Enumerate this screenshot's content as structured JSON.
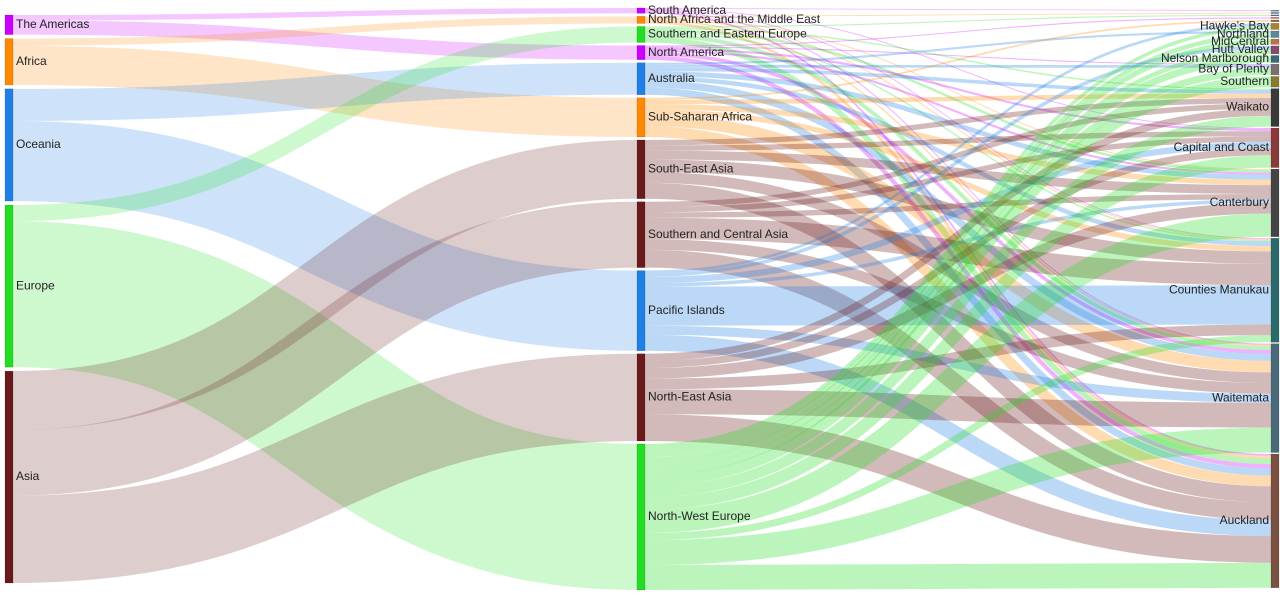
{
  "chart_data": {
    "type": "sankey",
    "columns": [
      {
        "nodes": [
          {
            "id": "americas",
            "label": "The Americas",
            "color": "#cc00ff"
          },
          {
            "id": "africa",
            "label": "Africa",
            "color": "#ff8800"
          },
          {
            "id": "oceania",
            "label": "Oceania",
            "color": "#1e7fe6"
          },
          {
            "id": "europe",
            "label": "Europe",
            "color": "#22dd22"
          },
          {
            "id": "asia",
            "label": "Asia",
            "color": "#6a1a1a"
          }
        ]
      },
      {
        "nodes": [
          {
            "id": "south_america",
            "label": "South America",
            "color": "#cc00ff"
          },
          {
            "id": "nafme",
            "label": "North Africa and the Middle East",
            "color": "#ff8800"
          },
          {
            "id": "se_europe",
            "label": "Southern and Eastern Europe",
            "color": "#22dd22"
          },
          {
            "id": "north_america",
            "label": "North America",
            "color": "#cc00ff"
          },
          {
            "id": "australia",
            "label": "Australia",
            "color": "#1e7fe6"
          },
          {
            "id": "ssa",
            "label": "Sub-Saharan Africa",
            "color": "#ff8800"
          },
          {
            "id": "sea",
            "label": "South-East Asia",
            "color": "#6a1a1a"
          },
          {
            "id": "sca",
            "label": "Southern and Central Asia",
            "color": "#6a1a1a"
          },
          {
            "id": "pacific",
            "label": "Pacific Islands",
            "color": "#1e7fe6"
          },
          {
            "id": "nea",
            "label": "North-East Asia",
            "color": "#6a1a1a"
          },
          {
            "id": "nwe",
            "label": "North-West Europe",
            "color": "#22dd22"
          }
        ]
      },
      {
        "nodes": [
          {
            "id": "r1",
            "label": "",
            "color": "#3d8f8f"
          },
          {
            "id": "r2",
            "label": "",
            "color": "#7a4a7a"
          },
          {
            "id": "r3",
            "label": "",
            "color": "#4a6f9a"
          },
          {
            "id": "r4",
            "label": "",
            "color": "#b05050"
          },
          {
            "id": "r5",
            "label": "",
            "color": "#8a6a3a"
          },
          {
            "id": "hawkes",
            "label": "Hawke's Bay",
            "color": "#b08030"
          },
          {
            "id": "northland",
            "label": "Northland",
            "color": "#5a8aa0"
          },
          {
            "id": "midcentral",
            "label": "MidCentral",
            "color": "#c0704a"
          },
          {
            "id": "hutt",
            "label": "Hutt Valley",
            "color": "#8a4a6a"
          },
          {
            "id": "nelson",
            "label": "Nelson Marlborough",
            "color": "#3a6a7a"
          },
          {
            "id": "bop",
            "label": "Bay of Plenty",
            "color": "#7a7070"
          },
          {
            "id": "southern",
            "label": "Southern",
            "color": "#8a7a30"
          },
          {
            "id": "waikato",
            "label": "Waikato",
            "color": "#3a3a3a"
          },
          {
            "id": "capital",
            "label": "Capital and Coast",
            "color": "#8a3a3a"
          },
          {
            "id": "canterbury",
            "label": "Canterbury",
            "color": "#444444"
          },
          {
            "id": "counties",
            "label": "Counties Manukau",
            "color": "#2a6a6a"
          },
          {
            "id": "waitemata",
            "label": "Waitemata",
            "color": "#4a6a7a"
          },
          {
            "id": "auckland",
            "label": "Auckland",
            "color": "#7a5040"
          }
        ]
      }
    ],
    "links": [
      {
        "source": "americas",
        "target": "south_america",
        "value": 3
      },
      {
        "source": "americas",
        "target": "north_america",
        "value": 8
      },
      {
        "source": "africa",
        "target": "nafme",
        "value": 4
      },
      {
        "source": "africa",
        "target": "ssa",
        "value": 22
      },
      {
        "source": "oceania",
        "target": "australia",
        "value": 18
      },
      {
        "source": "oceania",
        "target": "pacific",
        "value": 45
      },
      {
        "source": "europe",
        "target": "se_europe",
        "value": 9
      },
      {
        "source": "europe",
        "target": "nwe",
        "value": 82
      },
      {
        "source": "asia",
        "target": "sea",
        "value": 33
      },
      {
        "source": "asia",
        "target": "sca",
        "value": 37
      },
      {
        "source": "asia",
        "target": "nea",
        "value": 49
      },
      {
        "source": "south_america",
        "target": "r1",
        "value": 0.4
      },
      {
        "source": "south_america",
        "target": "capital",
        "value": 0.5
      },
      {
        "source": "south_america",
        "target": "counties",
        "value": 0.5
      },
      {
        "source": "south_america",
        "target": "waitemata",
        "value": 0.6
      },
      {
        "source": "south_america",
        "target": "auckland",
        "value": 1.0
      },
      {
        "source": "nafme",
        "target": "r2",
        "value": 0.5
      },
      {
        "source": "nafme",
        "target": "canterbury",
        "value": 0.6
      },
      {
        "source": "nafme",
        "target": "counties",
        "value": 0.6
      },
      {
        "source": "nafme",
        "target": "waitemata",
        "value": 0.8
      },
      {
        "source": "nafme",
        "target": "auckland",
        "value": 1.5
      },
      {
        "source": "se_europe",
        "target": "r3",
        "value": 0.6
      },
      {
        "source": "se_europe",
        "target": "waikato",
        "value": 0.8
      },
      {
        "source": "se_europe",
        "target": "canterbury",
        "value": 1.4
      },
      {
        "source": "se_europe",
        "target": "counties",
        "value": 0.8
      },
      {
        "source": "se_europe",
        "target": "waitemata",
        "value": 2.2
      },
      {
        "source": "se_europe",
        "target": "auckland",
        "value": 3.2
      },
      {
        "source": "north_america",
        "target": "r4",
        "value": 0.6
      },
      {
        "source": "north_america",
        "target": "bop",
        "value": 0.6
      },
      {
        "source": "north_america",
        "target": "capital",
        "value": 1.2
      },
      {
        "source": "north_america",
        "target": "canterbury",
        "value": 1.2
      },
      {
        "source": "north_america",
        "target": "waitemata",
        "value": 2.0
      },
      {
        "source": "north_america",
        "target": "auckland",
        "value": 2.4
      },
      {
        "source": "australia",
        "target": "northland",
        "value": 1.2
      },
      {
        "source": "australia",
        "target": "bop",
        "value": 1.5
      },
      {
        "source": "australia",
        "target": "waikato",
        "value": 2.0
      },
      {
        "source": "australia",
        "target": "canterbury",
        "value": 2.8
      },
      {
        "source": "australia",
        "target": "counties",
        "value": 2.5
      },
      {
        "source": "australia",
        "target": "waitemata",
        "value": 4.0
      },
      {
        "source": "australia",
        "target": "auckland",
        "value": 4.0
      },
      {
        "source": "ssa",
        "target": "r5",
        "value": 1.0
      },
      {
        "source": "ssa",
        "target": "waikato",
        "value": 2.5
      },
      {
        "source": "ssa",
        "target": "canterbury",
        "value": 3.0
      },
      {
        "source": "ssa",
        "target": "counties",
        "value": 3.0
      },
      {
        "source": "ssa",
        "target": "waitemata",
        "value": 6.5
      },
      {
        "source": "ssa",
        "target": "auckland",
        "value": 6.0
      },
      {
        "source": "sea",
        "target": "waikato",
        "value": 3.0
      },
      {
        "source": "sea",
        "target": "capital",
        "value": 3.0
      },
      {
        "source": "sea",
        "target": "canterbury",
        "value": 5.0
      },
      {
        "source": "sea",
        "target": "counties",
        "value": 7.0
      },
      {
        "source": "sea",
        "target": "waitemata",
        "value": 6.0
      },
      {
        "source": "sea",
        "target": "auckland",
        "value": 9.0
      },
      {
        "source": "sca",
        "target": "waikato",
        "value": 3.0
      },
      {
        "source": "sca",
        "target": "capital",
        "value": 3.0
      },
      {
        "source": "sca",
        "target": "canterbury",
        "value": 3.0
      },
      {
        "source": "sca",
        "target": "counties",
        "value": 12.0
      },
      {
        "source": "sca",
        "target": "waitemata",
        "value": 6.0
      },
      {
        "source": "sca",
        "target": "auckland",
        "value": 10.0
      },
      {
        "source": "pacific",
        "target": "hawkes",
        "value": 1.5
      },
      {
        "source": "pacific",
        "target": "hutt",
        "value": 2.0
      },
      {
        "source": "pacific",
        "target": "capital",
        "value": 3.5
      },
      {
        "source": "pacific",
        "target": "canterbury",
        "value": 2.0
      },
      {
        "source": "pacific",
        "target": "counties",
        "value": 22.0
      },
      {
        "source": "pacific",
        "target": "waitemata",
        "value": 5.0
      },
      {
        "source": "pacific",
        "target": "auckland",
        "value": 9.0
      },
      {
        "source": "nea",
        "target": "waikato",
        "value": 4.0
      },
      {
        "source": "nea",
        "target": "capital",
        "value": 4.0
      },
      {
        "source": "nea",
        "target": "canterbury",
        "value": 6.0
      },
      {
        "source": "nea",
        "target": "counties",
        "value": 6.0
      },
      {
        "source": "nea",
        "target": "waitemata",
        "value": 14.0
      },
      {
        "source": "nea",
        "target": "auckland",
        "value": 15.0
      },
      {
        "source": "nwe",
        "target": "hawkes",
        "value": 2.0
      },
      {
        "source": "nwe",
        "target": "northland",
        "value": 2.5
      },
      {
        "source": "nwe",
        "target": "midcentral",
        "value": 3.0
      },
      {
        "source": "nwe",
        "target": "hutt",
        "value": 2.5
      },
      {
        "source": "nwe",
        "target": "nelson",
        "value": 4.0
      },
      {
        "source": "nwe",
        "target": "bop",
        "value": 4.0
      },
      {
        "source": "nwe",
        "target": "southern",
        "value": 6.0
      },
      {
        "source": "nwe",
        "target": "waikato",
        "value": 6.0
      },
      {
        "source": "nwe",
        "target": "capital",
        "value": 7.0
      },
      {
        "source": "nwe",
        "target": "canterbury",
        "value": 13.0
      },
      {
        "source": "nwe",
        "target": "counties",
        "value": 4.0
      },
      {
        "source": "nwe",
        "target": "waitemata",
        "value": 14.0
      },
      {
        "source": "nwe",
        "target": "auckland",
        "value": 14.0
      }
    ]
  }
}
